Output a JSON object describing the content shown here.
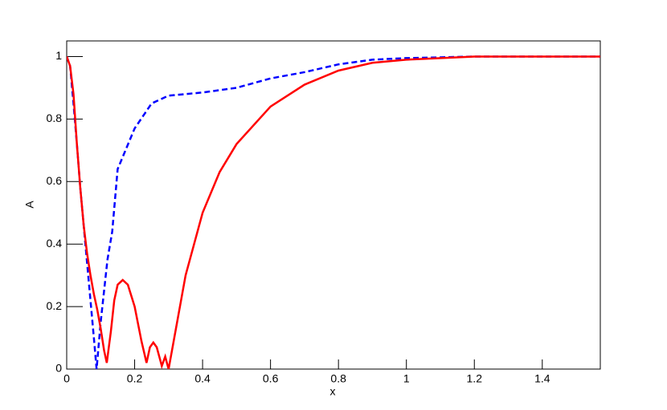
{
  "chart_data": {
    "type": "line",
    "x_label": "x",
    "y_label": "A",
    "xlim": [
      0,
      1.5708
    ],
    "ylim": [
      0,
      1.05
    ],
    "xticks": [
      0,
      0.2,
      0.4,
      0.6,
      0.8,
      1,
      1.2,
      1.4
    ],
    "yticks": [
      0,
      0.2,
      0.4,
      0.6,
      0.8,
      1
    ],
    "series": [
      {
        "color": "#0000ff",
        "linestyle": "dashed",
        "x": [
          0,
          0.01,
          0.02,
          0.03,
          0.04,
          0.05,
          0.06,
          0.07,
          0.08,
          0.088,
          0.1,
          0.12,
          0.134,
          0.15,
          0.2,
          0.25,
          0.3,
          0.4,
          0.5,
          0.6,
          0.7,
          0.8,
          0.9,
          1.0,
          1.2,
          1.5708
        ],
        "values": [
          1.0,
          0.97,
          0.85,
          0.72,
          0.58,
          0.46,
          0.34,
          0.22,
          0.1,
          0.0,
          0.15,
          0.35,
          0.44,
          0.64,
          0.77,
          0.85,
          0.875,
          0.885,
          0.9,
          0.93,
          0.95,
          0.975,
          0.99,
          0.995,
          1.0,
          1.0
        ]
      },
      {
        "color": "#ff0000",
        "linestyle": "solid",
        "x": [
          0,
          0.01,
          0.02,
          0.03,
          0.04,
          0.05,
          0.06,
          0.07,
          0.08,
          0.09,
          0.1,
          0.11,
          0.118,
          0.13,
          0.14,
          0.15,
          0.165,
          0.18,
          0.2,
          0.22,
          0.235,
          0.245,
          0.255,
          0.265,
          0.28,
          0.29,
          0.3,
          0.32,
          0.35,
          0.4,
          0.45,
          0.5,
          0.6,
          0.7,
          0.8,
          0.9,
          1.0,
          1.2,
          1.5708
        ],
        "values": [
          1.0,
          0.97,
          0.88,
          0.72,
          0.58,
          0.46,
          0.37,
          0.3,
          0.24,
          0.19,
          0.13,
          0.06,
          0.02,
          0.12,
          0.22,
          0.27,
          0.285,
          0.27,
          0.2,
          0.09,
          0.02,
          0.07,
          0.085,
          0.07,
          0.01,
          0.04,
          0.0,
          0.12,
          0.3,
          0.5,
          0.63,
          0.72,
          0.84,
          0.91,
          0.955,
          0.98,
          0.99,
          1.0,
          1.0
        ]
      }
    ]
  }
}
